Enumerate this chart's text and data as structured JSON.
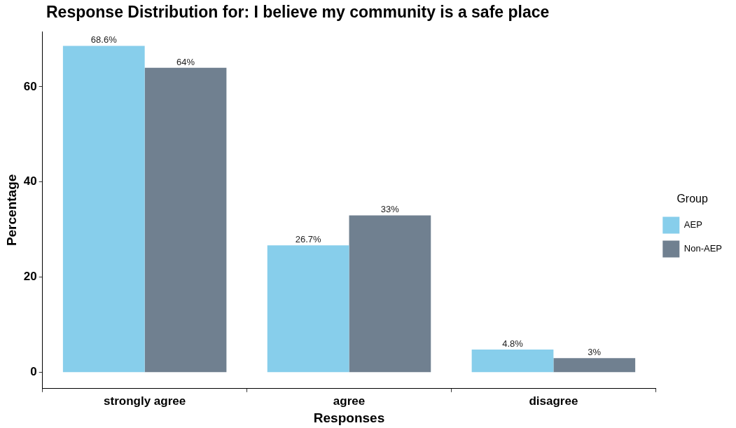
{
  "chart_data": {
    "type": "bar",
    "title": "Response Distribution for: I believe my community is a safe place",
    "xlabel": "Responses",
    "ylabel": "Percentage",
    "legend_title": "Group",
    "categories": [
      "strongly agree",
      "agree",
      "disagree"
    ],
    "series": [
      {
        "name": "AEP",
        "color": "#87ceeb",
        "values": [
          68.6,
          26.7,
          4.8
        ],
        "value_labels": [
          "68.6%",
          "26.7%",
          "4.8%"
        ]
      },
      {
        "name": "Non-AEP",
        "color": "#708090",
        "values": [
          64,
          33,
          3
        ],
        "value_labels": [
          "64%",
          "33%",
          "3%"
        ]
      }
    ],
    "ylim": [
      -3.4,
      71.6
    ],
    "yticks": [
      0,
      20,
      40,
      60
    ],
    "grid": false,
    "legend": "right"
  }
}
